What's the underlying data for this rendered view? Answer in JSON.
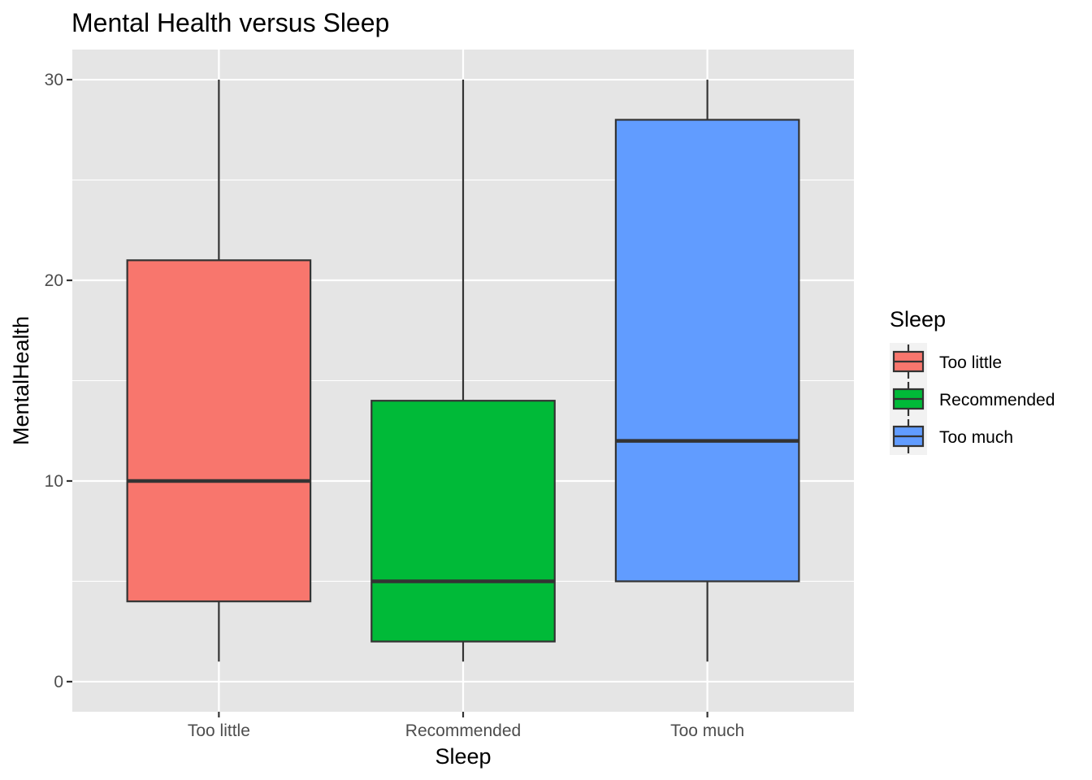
{
  "chart_data": {
    "type": "boxplot",
    "title": "Mental Health versus Sleep",
    "xlabel": "Sleep",
    "ylabel": "MentalHealth",
    "ylim": [
      -1.5,
      31.5
    ],
    "y_ticks": [
      0,
      10,
      20,
      30
    ],
    "y_tick_labels": [
      "0",
      "10",
      "20",
      "30"
    ],
    "grid": true,
    "legend": {
      "title": "Sleep",
      "placement": "right"
    },
    "categories": [
      "Too little",
      "Recommended",
      "Too much"
    ],
    "boxes": [
      {
        "category": "Too little",
        "color": "#F8766D",
        "min": 1,
        "q1": 4,
        "median": 10,
        "q3": 21,
        "max": 30
      },
      {
        "category": "Recommended",
        "color": "#00BA38",
        "min": 1,
        "q1": 2,
        "median": 5,
        "q3": 14,
        "max": 30
      },
      {
        "category": "Too much",
        "color": "#619CFF",
        "min": 1,
        "q1": 5,
        "median": 12,
        "q3": 28,
        "max": 30
      }
    ]
  }
}
